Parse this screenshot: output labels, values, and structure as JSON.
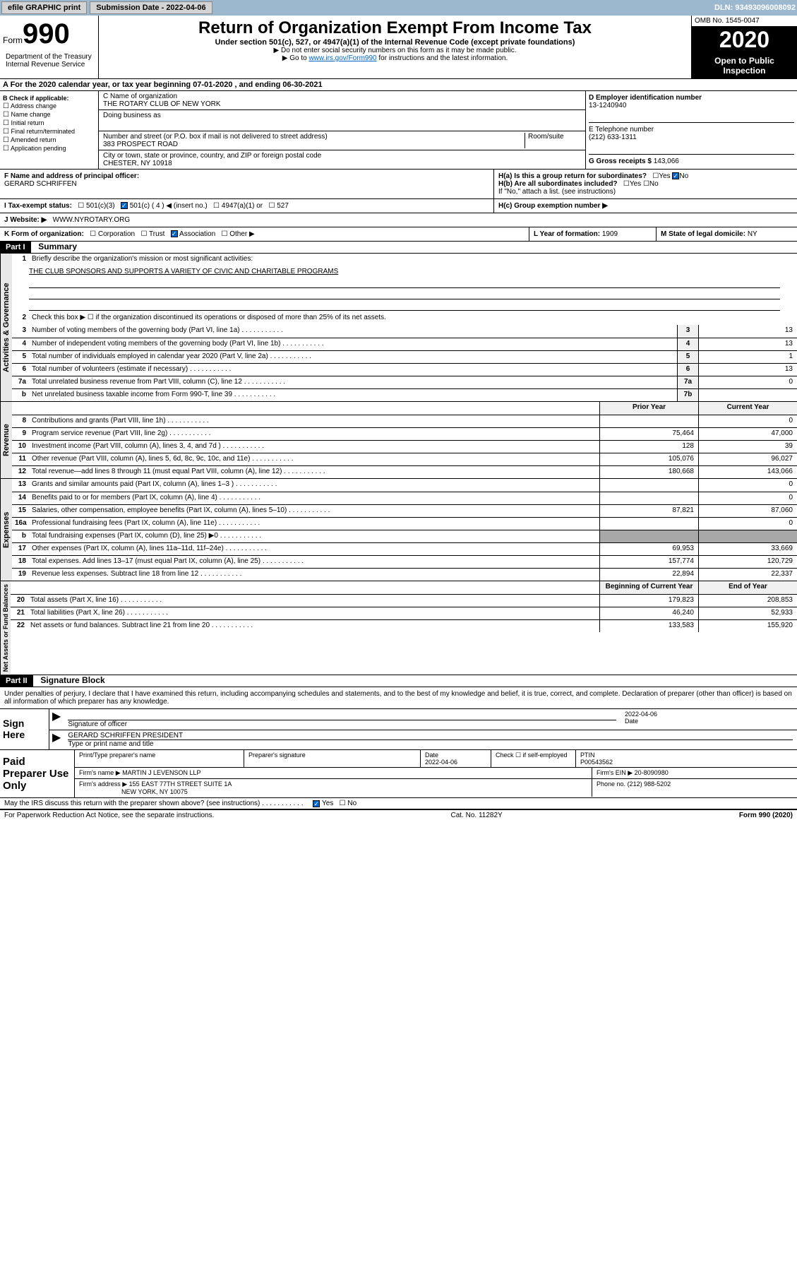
{
  "toolbar": {
    "efile_label": "efile GRAPHIC print",
    "sub_date_label": "Submission Date - 2022-04-06",
    "dln_label": "DLN: 93493096008092"
  },
  "header": {
    "form_label": "Form",
    "form_number": "990",
    "dept": "Department of the Treasury Internal Revenue Service",
    "title": "Return of Organization Exempt From Income Tax",
    "subtitle": "Under section 501(c), 527, or 4947(a)(1) of the Internal Revenue Code (except private foundations)",
    "note1": "▶ Do not enter social security numbers on this form as it may be made public.",
    "note2_pre": "▶ Go to ",
    "note2_link": "www.irs.gov/Form990",
    "note2_post": " for instructions and the latest information.",
    "omb": "OMB No. 1545-0047",
    "year": "2020",
    "open": "Open to Public Inspection"
  },
  "period": "A For the 2020 calendar year, or tax year beginning 07-01-2020     , and ending 06-30-2021",
  "section_b": {
    "label": "B Check if applicable:",
    "items": [
      "Address change",
      "Name change",
      "Initial return",
      "Final return/terminated",
      "Amended return",
      "Application pending"
    ]
  },
  "section_c": {
    "name_label": "C Name of organization",
    "name": "THE ROTARY CLUB OF NEW YORK",
    "dba_label": "Doing business as",
    "addr_label": "Number and street (or P.O. box if mail is not delivered to street address)",
    "room_label": "Room/suite",
    "addr": "383 PROSPECT ROAD",
    "city_label": "City or town, state or province, country, and ZIP or foreign postal code",
    "city": "CHESTER, NY  10918"
  },
  "section_d": {
    "ein_label": "D Employer identification number",
    "ein": "13-1240940",
    "tel_label": "E Telephone number",
    "tel": "(212) 633-1311",
    "gross_label": "G Gross receipts $",
    "gross": "143,066"
  },
  "section_f": {
    "label": "F  Name and address of principal officer:",
    "name": "GERARD SCHRIFFEN"
  },
  "section_h": {
    "a_label": "H(a)  Is this a group return for subordinates?",
    "b_label": "H(b)  Are all subordinates included?",
    "note": "If \"No,\" attach a list. (see instructions)",
    "c_label": "H(c)  Group exemption number ▶"
  },
  "section_i": {
    "label": "I    Tax-exempt status:",
    "opts": [
      "501(c)(3)",
      "501(c) ( 4 ) ◀ (insert no.)",
      "4947(a)(1) or",
      "527"
    ]
  },
  "section_j": {
    "label": "J    Website: ▶",
    "val": "WWW.NYROTARY.ORG"
  },
  "section_k": {
    "label": "K Form of organization:",
    "opts": [
      "Corporation",
      "Trust",
      "Association",
      "Other ▶"
    ],
    "l_label": "L Year of formation:",
    "l_val": "1909",
    "m_label": "M State of legal domicile:",
    "m_val": "NY"
  },
  "part1": {
    "num": "Part I",
    "title": "Summary"
  },
  "summary": {
    "sec1_label": "Activities & Governance",
    "sec2_label": "Revenue",
    "sec3_label": "Expenses",
    "sec4_label": "Net Assets or Fund Balances",
    "line1": "Briefly describe the organization's mission or most significant activities:",
    "mission": "THE CLUB SPONSORS AND SUPPORTS A VARIETY OF CIVIC AND CHARITABLE PROGRAMS",
    "line2": "Check this box ▶ ☐  if the organization discontinued its operations or disposed of more than 25% of its net assets.",
    "rows": [
      {
        "n": "3",
        "t": "Number of voting members of the governing body (Part VI, line 1a)",
        "b": "3",
        "v": "13"
      },
      {
        "n": "4",
        "t": "Number of independent voting members of the governing body (Part VI, line 1b)",
        "b": "4",
        "v": "13"
      },
      {
        "n": "5",
        "t": "Total number of individuals employed in calendar year 2020 (Part V, line 2a)",
        "b": "5",
        "v": "1"
      },
      {
        "n": "6",
        "t": "Total number of volunteers (estimate if necessary)",
        "b": "6",
        "v": "13"
      },
      {
        "n": "7a",
        "t": "Total unrelated business revenue from Part VIII, column (C), line 12",
        "b": "7a",
        "v": "0"
      },
      {
        "n": "b",
        "t": "Net unrelated business taxable income from Form 990-T, line 39",
        "b": "7b",
        "v": ""
      }
    ],
    "py_label": "Prior Year",
    "cy_label": "Current Year",
    "rev_rows": [
      {
        "n": "8",
        "t": "Contributions and grants (Part VIII, line 1h)",
        "py": "",
        "cy": "0"
      },
      {
        "n": "9",
        "t": "Program service revenue (Part VIII, line 2g)",
        "py": "75,464",
        "cy": "47,000"
      },
      {
        "n": "10",
        "t": "Investment income (Part VIII, column (A), lines 3, 4, and 7d )",
        "py": "128",
        "cy": "39"
      },
      {
        "n": "11",
        "t": "Other revenue (Part VIII, column (A), lines 5, 6d, 8c, 9c, 10c, and 11e)",
        "py": "105,076",
        "cy": "96,027"
      },
      {
        "n": "12",
        "t": "Total revenue—add lines 8 through 11 (must equal Part VIII, column (A), line 12)",
        "py": "180,668",
        "cy": "143,066"
      }
    ],
    "exp_rows": [
      {
        "n": "13",
        "t": "Grants and similar amounts paid (Part IX, column (A), lines 1–3 )",
        "py": "",
        "cy": "0"
      },
      {
        "n": "14",
        "t": "Benefits paid to or for members (Part IX, column (A), line 4)",
        "py": "",
        "cy": "0"
      },
      {
        "n": "15",
        "t": "Salaries, other compensation, employee benefits (Part IX, column (A), lines 5–10)",
        "py": "87,821",
        "cy": "87,060"
      },
      {
        "n": "16a",
        "t": "Professional fundraising fees (Part IX, column (A), line 11e)",
        "py": "",
        "cy": "0"
      },
      {
        "n": "b",
        "t": "Total fundraising expenses (Part IX, column (D), line 25) ▶0",
        "py": "shaded",
        "cy": "shaded"
      },
      {
        "n": "17",
        "t": "Other expenses (Part IX, column (A), lines 11a–11d, 11f–24e)",
        "py": "69,953",
        "cy": "33,669"
      },
      {
        "n": "18",
        "t": "Total expenses. Add lines 13–17 (must equal Part IX, column (A), line 25)",
        "py": "157,774",
        "cy": "120,729"
      },
      {
        "n": "19",
        "t": "Revenue less expenses. Subtract line 18 from line 12",
        "py": "22,894",
        "cy": "22,337"
      }
    ],
    "boc_label": "Beginning of Current Year",
    "eoy_label": "End of Year",
    "net_rows": [
      {
        "n": "20",
        "t": "Total assets (Part X, line 16)",
        "py": "179,823",
        "cy": "208,853"
      },
      {
        "n": "21",
        "t": "Total liabilities (Part X, line 26)",
        "py": "46,240",
        "cy": "52,933"
      },
      {
        "n": "22",
        "t": "Net assets or fund balances. Subtract line 21 from line 20",
        "py": "133,583",
        "cy": "155,920"
      }
    ]
  },
  "part2": {
    "num": "Part II",
    "title": "Signature Block",
    "decl": "Under penalties of perjury, I declare that I have examined this return, including accompanying schedules and statements, and to the best of my knowledge and belief, it is true, correct, and complete. Declaration of preparer (other than officer) is based on all information of which preparer has any knowledge."
  },
  "sign": {
    "here": "Sign Here",
    "sig_label": "Signature of officer",
    "date_label": "Date",
    "date": "2022-04-06",
    "name": "GERARD SCHRIFFEN  PRESIDENT",
    "name_label": "Type or print name and title"
  },
  "prep": {
    "title": "Paid Preparer Use Only",
    "name_label": "Print/Type preparer's name",
    "sig_label": "Preparer's signature",
    "date_label": "Date",
    "date": "2022-04-06",
    "check_label": "Check ☐ if self-employed",
    "ptin_label": "PTIN",
    "ptin": "P00543562",
    "firm_name_label": "Firm's name      ▶",
    "firm_name": "MARTIN J LEVENSON LLP",
    "firm_ein_label": "Firm's EIN ▶",
    "firm_ein": "20-8090980",
    "firm_addr_label": "Firm's address ▶",
    "firm_addr1": "155 EAST 77TH STREET SUITE 1A",
    "firm_addr2": "NEW YORK, NY  10075",
    "phone_label": "Phone no.",
    "phone": "(212) 988-5202"
  },
  "discuss": "May the IRS discuss this return with the preparer shown above? (see instructions)",
  "footer": {
    "left": "For Paperwork Reduction Act Notice, see the separate instructions.",
    "mid": "Cat. No. 11282Y",
    "right": "Form 990 (2020)"
  }
}
